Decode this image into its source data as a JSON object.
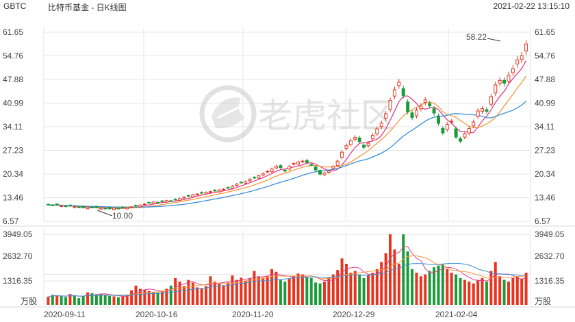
{
  "header": {
    "symbol": "GBTC",
    "title": "比特币基金 - 日K线图",
    "datetime": "2021-02-22 13:15:10"
  },
  "watermark": {
    "text": "老虎社区",
    "icon": "tiger-logo-icon"
  },
  "colors": {
    "up": "#e8331f",
    "down": "#1a9a3a",
    "ma5": "#e23d8b",
    "ma10": "#f39a3c",
    "ma20": "#3a8fd6",
    "grid": "#e6e6e6"
  },
  "chart_data": {
    "type": "candlestick",
    "price_axis": {
      "ticks": [
        "61.65",
        "54.76",
        "47.88",
        "40.99",
        "34.11",
        "27.23",
        "20.34",
        "13.46",
        "6.57"
      ],
      "ylim": [
        6.57,
        61.65
      ]
    },
    "volume_axis": {
      "ticks": [
        "3949.05",
        "2632.70",
        "1316.35"
      ],
      "unit": "万股",
      "ylim": [
        0,
        3949.05
      ]
    },
    "x_ticks": [
      "2020-09-11",
      "2020-10-16",
      "2020-11-20",
      "2020-12-29",
      "2021-02-04"
    ],
    "annotations": [
      {
        "text": "58.22",
        "label": "max"
      },
      {
        "text": "10.00",
        "label": "min"
      }
    ],
    "closes": [
      11.4,
      11.2,
      11.3,
      11.1,
      10.9,
      11.0,
      10.8,
      10.6,
      10.5,
      10.7,
      10.6,
      10.5,
      10.4,
      10.3,
      10.2,
      10.4,
      10.3,
      10.5,
      10.6,
      10.8,
      11.0,
      11.3,
      11.6,
      11.9,
      12.2,
      12.0,
      12.4,
      12.6,
      12.5,
      12.9,
      13.2,
      13.6,
      13.9,
      14.3,
      14.5,
      14.8,
      15.0,
      15.2,
      15.4,
      15.7,
      15.9,
      16.3,
      16.8,
      17.4,
      17.9,
      18.1,
      18.8,
      19.3,
      19.8,
      20.4,
      21.1,
      21.8,
      22.6,
      22.2,
      21.2,
      22.6,
      23.4,
      23.8,
      24.1,
      23.7,
      23.0,
      21.5,
      20.3,
      20.6,
      21.2,
      22.5,
      24.1,
      26.7,
      28.6,
      30.1,
      31.0,
      29.8,
      28.1,
      29.3,
      31.6,
      33.5,
      35.2,
      37.9,
      41.8,
      44.9,
      47.1,
      43.2,
      38.5,
      36.8,
      38.9,
      40.1,
      41.9,
      40.2,
      38.1,
      35.1,
      32.3,
      34.8,
      35.7,
      31.1,
      29.9,
      32.0,
      33.6,
      35.5,
      38.7,
      39.4,
      38.6,
      42.9,
      46.3,
      47.6,
      46.8,
      49.1,
      51.0,
      53.6,
      54.8,
      58.22
    ],
    "volumes": [
      450,
      560,
      520,
      480,
      430,
      610,
      540,
      380,
      490,
      700,
      650,
      600,
      620,
      540,
      500,
      480,
      420,
      460,
      560,
      820,
      1080,
      900,
      850,
      780,
      720,
      690,
      750,
      900,
      1080,
      1500,
      1300,
      1050,
      1400,
      1250,
      980,
      920,
      1050,
      1600,
      1300,
      1200,
      1100,
      1250,
      1650,
      1400,
      1520,
      1350,
      1480,
      1900,
      1600,
      1520,
      1600,
      2000,
      1850,
      1400,
      1300,
      1450,
      1600,
      1750,
      1700,
      1550,
      1500,
      1250,
      1200,
      1300,
      1550,
      1700,
      1950,
      2600,
      2300,
      1800,
      1900,
      1700,
      1500,
      1650,
      1800,
      2000,
      2400,
      2900,
      3949.05,
      3100,
      2300,
      3949.05,
      3000,
      2000,
      1800,
      1600,
      1700,
      1900,
      2100,
      2200,
      2300,
      2000,
      1800,
      1700,
      1500,
      1400,
      1300,
      1200,
      1400,
      1500,
      1300,
      1900,
      2400,
      1600,
      1400,
      1300,
      1500,
      1600,
      1450,
      1800
    ]
  }
}
